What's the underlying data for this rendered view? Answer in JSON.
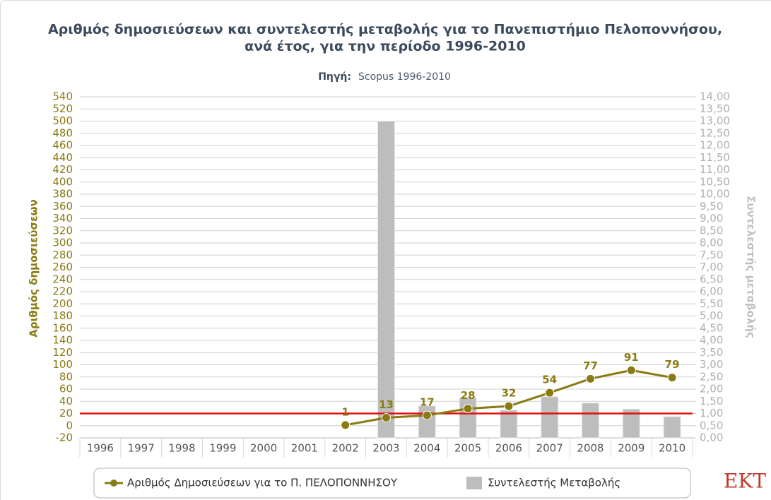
{
  "chart_data": {
    "type": "bar_line",
    "title": [
      "Αριθμός δημοσιεύσεων και συντελεστής μεταβολής για το Πανεπιστήμιο Πελοποννήσου,",
      "ανά έτος, για την περίοδο 1996-2010"
    ],
    "source_label": "Πηγή:",
    "source": "Scopus 1996-2010",
    "ylabel": "Αριθμός δημοσιεύσεων",
    "y2label": "Συντελεστής μεταβολής",
    "categories": [
      "1996",
      "1997",
      "1998",
      "1999",
      "2000",
      "2001",
      "2002",
      "2003",
      "2004",
      "2005",
      "2006",
      "2007",
      "2008",
      "2009",
      "2010"
    ],
    "series": [
      {
        "name": "Αριθμός Δημοσιεύσεων για το Π. ΠΕΛΟΠΟΝΝΗΣΟΥ",
        "type": "line",
        "color": "#8a7a12",
        "axis": "y",
        "values": [
          null,
          null,
          null,
          null,
          null,
          null,
          1,
          13,
          17,
          28,
          32,
          54,
          77,
          91,
          79
        ]
      },
      {
        "name": "Συντελεστής Μεταβολής",
        "type": "bar",
        "color": "#bdbdbd",
        "axis": "y2",
        "values": [
          null,
          null,
          null,
          null,
          null,
          null,
          null,
          13,
          1.31,
          1.65,
          1.14,
          1.69,
          1.43,
          1.18,
          0.87
        ]
      }
    ],
    "reference_line": {
      "axis": "y2",
      "value": 1,
      "color": "#e01010"
    },
    "ylim": [
      -20,
      540
    ],
    "yticks": [
      -20,
      0,
      20,
      40,
      60,
      80,
      100,
      120,
      140,
      160,
      180,
      200,
      220,
      240,
      260,
      280,
      300,
      320,
      340,
      360,
      380,
      400,
      420,
      440,
      460,
      480,
      500,
      520,
      540
    ],
    "y2lim": [
      0,
      14
    ],
    "y2ticks": [
      {
        "value": 0,
        "label": "0,00"
      },
      {
        "value": 0.5,
        "label": "0,50"
      },
      {
        "value": 1,
        "label": "1,00"
      },
      {
        "value": 1.5,
        "label": "1,50"
      },
      {
        "value": 2,
        "label": "2,00"
      },
      {
        "value": 2.5,
        "label": "2,50"
      },
      {
        "value": 3,
        "label": "3,00"
      },
      {
        "value": 3.5,
        "label": "3,50"
      },
      {
        "value": 4,
        "label": "4,00"
      },
      {
        "value": 4.5,
        "label": "4,50"
      },
      {
        "value": 5,
        "label": "5,00"
      },
      {
        "value": 5.5,
        "label": "5,50"
      },
      {
        "value": 6,
        "label": "6,00"
      },
      {
        "value": 6.5,
        "label": "6,50"
      },
      {
        "value": 7,
        "label": "7,00"
      },
      {
        "value": 7.5,
        "label": "7,50"
      },
      {
        "value": 8,
        "label": "8,00"
      },
      {
        "value": 8.5,
        "label": "8,50"
      },
      {
        "value": 9,
        "label": "9,00"
      },
      {
        "value": 9.5,
        "label": "9,50"
      },
      {
        "value": 10,
        "label": "10,00"
      },
      {
        "value": 10.5,
        "label": "10,50"
      },
      {
        "value": 11,
        "label": "11,00"
      },
      {
        "value": 11.5,
        "label": "11,50"
      },
      {
        "value": 12,
        "label": "12,00"
      },
      {
        "value": 12.5,
        "label": "12,50"
      },
      {
        "value": 13,
        "label": "13,00"
      },
      {
        "value": 13.5,
        "label": "13,50"
      },
      {
        "value": 14,
        "label": "14,00"
      }
    ],
    "grid": true,
    "legend": "bottom",
    "logo": "EKT"
  }
}
